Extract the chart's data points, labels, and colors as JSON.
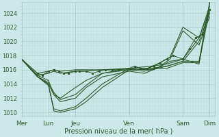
{
  "bg_color": "#cce8e8",
  "grid_major_color": "#aacccc",
  "grid_minor_color": "#bbdddd",
  "line_color": "#2d5a2d",
  "xlabel": "Pression niveau de la mer( hPa )",
  "xtick_labels": [
    "Mer",
    "Lun",
    "Jeu",
    "Ven",
    "Sam",
    "Dim"
  ],
  "xtick_positions": [
    0.0,
    0.83,
    1.67,
    3.33,
    5.0,
    5.83
  ],
  "xlim": [
    0.0,
    6.0
  ],
  "ylim": [
    1009.5,
    1025.5
  ],
  "yticks": [
    1010,
    1012,
    1014,
    1016,
    1018,
    1020,
    1022,
    1024
  ],
  "lines": [
    [
      0.0,
      1017.5,
      0.5,
      1015.5,
      0.83,
      1015.8,
      1.0,
      1016.0,
      1.2,
      1015.8,
      1.67,
      1016.0,
      2.0,
      1016.0,
      2.5,
      1016.0,
      3.33,
      1016.2,
      4.0,
      1016.5,
      4.5,
      1016.8,
      5.0,
      1017.5,
      5.5,
      1020.5,
      5.83,
      1024.5
    ],
    [
      0.0,
      1017.5,
      0.5,
      1015.2,
      0.83,
      1015.5,
      1.0,
      1015.8,
      1.2,
      1015.5,
      1.67,
      1015.8,
      2.0,
      1015.8,
      2.5,
      1016.0,
      3.33,
      1016.0,
      4.0,
      1016.2,
      4.5,
      1016.5,
      5.0,
      1017.2,
      5.5,
      1020.0,
      5.83,
      1024.0
    ],
    [
      0.0,
      1017.5,
      0.5,
      1015.0,
      0.83,
      1014.0,
      1.0,
      1010.2,
      1.2,
      1010.0,
      1.67,
      1010.5,
      2.0,
      1011.5,
      2.5,
      1013.5,
      3.33,
      1016.0,
      4.0,
      1016.2,
      4.5,
      1016.2,
      5.0,
      1017.0,
      5.5,
      1017.0,
      5.83,
      1024.5
    ],
    [
      0.0,
      1017.5,
      0.5,
      1015.0,
      0.83,
      1013.8,
      1.0,
      1010.5,
      1.2,
      1010.2,
      1.67,
      1010.8,
      2.0,
      1012.0,
      2.5,
      1014.0,
      3.33,
      1016.2,
      4.0,
      1016.0,
      4.5,
      1016.5,
      5.0,
      1017.2,
      5.5,
      1017.2,
      5.83,
      1025.5
    ],
    [
      0.0,
      1017.5,
      0.5,
      1015.2,
      0.83,
      1014.5,
      1.0,
      1012.5,
      1.2,
      1011.5,
      1.67,
      1012.0,
      2.0,
      1013.5,
      2.5,
      1015.0,
      3.33,
      1015.8,
      3.8,
      1015.5,
      4.2,
      1016.2,
      4.6,
      1017.5,
      5.0,
      1021.5,
      5.5,
      1019.5,
      5.83,
      1023.5
    ],
    [
      0.0,
      1017.5,
      0.5,
      1015.0,
      0.83,
      1014.2,
      1.0,
      1012.8,
      1.2,
      1011.8,
      1.67,
      1012.5,
      2.0,
      1013.8,
      2.5,
      1015.5,
      3.33,
      1016.2,
      3.8,
      1016.0,
      4.2,
      1016.8,
      4.6,
      1017.8,
      5.0,
      1022.0,
      5.5,
      1020.5,
      5.83,
      1025.0
    ],
    [
      0.0,
      1017.5,
      0.5,
      1015.0,
      0.83,
      1014.0,
      1.0,
      1012.5,
      1.2,
      1012.0,
      1.67,
      1013.5,
      2.0,
      1014.5,
      2.5,
      1015.5,
      3.33,
      1016.0,
      3.8,
      1015.8,
      4.2,
      1016.2,
      4.6,
      1017.2,
      5.0,
      1017.5,
      5.5,
      1016.8,
      5.83,
      1025.5
    ]
  ],
  "dense_line": [
    0.5,
    1015.5,
    0.65,
    1015.2,
    0.83,
    1015.8,
    1.0,
    1016.0,
    1.15,
    1015.8,
    1.3,
    1015.5,
    1.45,
    1015.5,
    1.67,
    1015.8,
    1.8,
    1015.8,
    2.0,
    1015.8,
    2.2,
    1015.5,
    2.4,
    1015.8,
    2.6,
    1016.0,
    2.8,
    1016.0,
    3.0,
    1016.0,
    3.33,
    1016.2,
    3.5,
    1016.5,
    3.7,
    1016.2,
    3.9,
    1016.2,
    4.1,
    1016.5,
    4.3,
    1017.0,
    4.5,
    1017.5,
    4.7,
    1018.0,
    5.0,
    1017.5,
    5.2,
    1019.0,
    5.4,
    1020.5,
    5.6,
    1021.0,
    5.83,
    1024.5
  ],
  "vlines": [
    0.0,
    0.83,
    1.67,
    3.33,
    5.0,
    5.83
  ]
}
